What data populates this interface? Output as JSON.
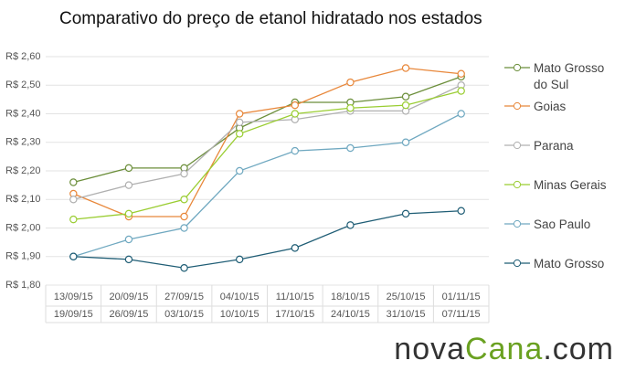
{
  "chart_data": {
    "type": "line",
    "title": "Comparativo do preço de etanol hidratado nos estados",
    "categories": [
      [
        "13/09/15",
        "19/09/15"
      ],
      [
        "20/09/15",
        "26/09/15"
      ],
      [
        "27/09/15",
        "03/10/15"
      ],
      [
        "04/10/15",
        "10/10/15"
      ],
      [
        "11/10/15",
        "17/10/15"
      ],
      [
        "18/10/15",
        "24/10/15"
      ],
      [
        "25/10/15",
        "31/10/15"
      ],
      [
        "01/11/15",
        "07/11/15"
      ]
    ],
    "ylim": [
      1.8,
      2.6
    ],
    "yticks": [
      {
        "value": 1.8,
        "label": "R$ 1,80"
      },
      {
        "value": 1.9,
        "label": "R$ 1,90"
      },
      {
        "value": 2.0,
        "label": "R$ 2,00"
      },
      {
        "value": 2.1,
        "label": "R$ 2,10"
      },
      {
        "value": 2.2,
        "label": "R$ 2,20"
      },
      {
        "value": 2.3,
        "label": "R$ 2,30"
      },
      {
        "value": 2.4,
        "label": "R$ 2,40"
      },
      {
        "value": 2.5,
        "label": "R$ 2,50"
      },
      {
        "value": 2.6,
        "label": "R$ 2,60"
      }
    ],
    "grid": true,
    "series": [
      {
        "name": "Mato Grosso do Sul",
        "color": "#6b8e3a",
        "values": [
          2.16,
          2.21,
          2.21,
          2.35,
          2.44,
          2.44,
          2.46,
          2.53
        ]
      },
      {
        "name": "Goias",
        "color": "#e8873a",
        "values": [
          2.12,
          2.04,
          2.04,
          2.4,
          2.43,
          2.51,
          2.56,
          2.54
        ]
      },
      {
        "name": "Parana",
        "color": "#b0b0b0",
        "values": [
          2.1,
          2.15,
          2.19,
          2.37,
          2.38,
          2.41,
          2.41,
          2.5
        ]
      },
      {
        "name": "Minas Gerais",
        "color": "#9acd32",
        "values": [
          2.03,
          2.05,
          2.1,
          2.33,
          2.4,
          2.42,
          2.43,
          2.48
        ]
      },
      {
        "name": "Sao Paulo",
        "color": "#6fa8c0",
        "values": [
          1.9,
          1.96,
          2.0,
          2.2,
          2.27,
          2.28,
          2.3,
          2.4
        ]
      },
      {
        "name": "Mato Grosso",
        "color": "#1f5d75",
        "values": [
          1.9,
          1.89,
          1.86,
          1.89,
          1.93,
          2.01,
          2.05,
          2.06
        ]
      }
    ]
  },
  "logo": [
    {
      "text": "nova",
      "color": "#333"
    },
    {
      "text": "Cana",
      "color": "#6aa121"
    },
    {
      "text": ".com",
      "color": "#333"
    }
  ]
}
